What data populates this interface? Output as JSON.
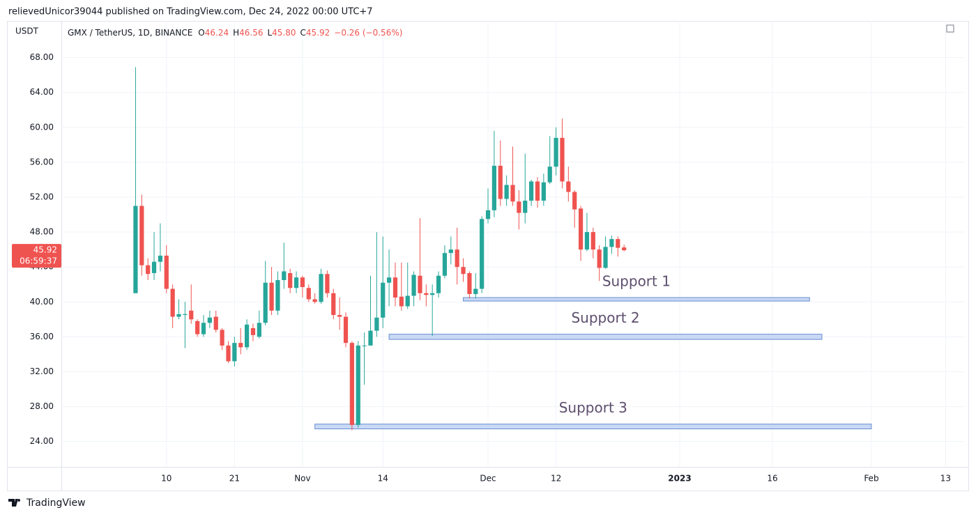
{
  "header": "relievedUnicor39044 published on TradingView.com, Dec 24, 2022 00:00 UTC+7",
  "footer": "TradingView",
  "chart_data": {
    "type": "candlestick",
    "unit": "USDT",
    "legend": {
      "symbol": "GMX / TetherUS, 1D, BINANCE",
      "items": [
        {
          "key": "O",
          "value": "46.24"
        },
        {
          "key": "H",
          "value": "46.56"
        },
        {
          "key": "L",
          "value": "45.80"
        },
        {
          "key": "C",
          "value": "45.92"
        }
      ],
      "change": "−0.26 (−0.56%)"
    },
    "last_price_label": "45.92",
    "countdown": "06:59:37",
    "up_color": "#26a69a",
    "down_color": "#ef5350",
    "x": [
      "2022-10-05",
      "2022-10-06",
      "2022-10-07",
      "2022-10-08",
      "2022-10-09",
      "2022-10-10",
      "2022-10-11",
      "2022-10-12",
      "2022-10-13",
      "2022-10-14",
      "2022-10-15",
      "2022-10-16",
      "2022-10-17",
      "2022-10-18",
      "2022-10-19",
      "2022-10-20",
      "2022-10-21",
      "2022-10-22",
      "2022-10-23",
      "2022-10-24",
      "2022-10-25",
      "2022-10-26",
      "2022-10-27",
      "2022-10-28",
      "2022-10-29",
      "2022-10-30",
      "2022-10-31",
      "2022-11-01",
      "2022-11-02",
      "2022-11-03",
      "2022-11-04",
      "2022-11-05",
      "2022-11-06",
      "2022-11-07",
      "2022-11-08",
      "2022-11-09",
      "2022-11-10",
      "2022-11-11",
      "2022-11-12",
      "2022-11-13",
      "2022-11-14",
      "2022-11-15",
      "2022-11-16",
      "2022-11-17",
      "2022-11-18",
      "2022-11-19",
      "2022-11-20",
      "2022-11-21",
      "2022-11-22",
      "2022-11-23",
      "2022-11-24",
      "2022-11-25",
      "2022-11-26",
      "2022-11-27",
      "2022-11-28",
      "2022-11-29",
      "2022-11-30",
      "2022-12-01",
      "2022-12-02",
      "2022-12-03",
      "2022-12-04",
      "2022-12-05",
      "2022-12-06",
      "2022-12-07",
      "2022-12-08",
      "2022-12-09",
      "2022-12-10",
      "2022-12-11",
      "2022-12-12",
      "2022-12-13",
      "2022-12-14",
      "2022-12-15",
      "2022-12-16",
      "2022-12-17",
      "2022-12-18",
      "2022-12-19",
      "2022-12-20",
      "2022-12-21",
      "2022-12-22",
      "2022-12-23"
    ],
    "open": [
      41,
      51,
      44.2,
      43.3,
      44.6,
      45.3,
      41.5,
      38.3,
      38.5,
      39,
      37.8,
      36.3,
      37.6,
      38.3,
      36.8,
      35,
      33.2,
      35.3,
      34.8,
      37,
      36,
      37.6,
      42.2,
      39,
      42.5,
      43.3,
      41.6,
      42.8,
      41.6,
      40.3,
      40,
      43.2,
      41,
      38.5,
      38.3,
      35.3,
      25.9,
      35,
      35,
      36.7,
      38.2,
      42.2,
      42.8,
      40.6,
      39.5,
      40.7,
      43,
      41,
      40.8,
      41,
      43,
      45.6,
      46,
      44,
      43.3,
      40.9,
      41.5,
      49.5,
      50.5,
      55.6,
      51.8,
      53.4,
      51.5,
      50.2,
      51.6,
      53.8,
      51.6,
      53.7,
      55.5,
      58.8,
      53.8,
      52.6,
      50.7,
      46,
      48,
      46,
      43.9,
      46.3,
      47.2,
      46.24
    ],
    "high": [
      66.9,
      52.3,
      45,
      48,
      49,
      46.5,
      42,
      40.3,
      40,
      42,
      38,
      38.5,
      39,
      39,
      37,
      35.5,
      36,
      37,
      38,
      37.5,
      39,
      44.7,
      44,
      43.5,
      46.8,
      43.8,
      43.5,
      43,
      42,
      41,
      43.8,
      43.6,
      41.5,
      40.5,
      38.8,
      35.5,
      35.5,
      36.5,
      43,
      48,
      47.5,
      46,
      44.5,
      44.5,
      44.5,
      43.5,
      49.6,
      42,
      42,
      43.5,
      46.5,
      47.5,
      48.5,
      45,
      43.5,
      43.3,
      49.8,
      53,
      59.6,
      58.5,
      54.5,
      57.8,
      52.8,
      57,
      54,
      54.3,
      54.7,
      59,
      60,
      61,
      55.5,
      52.8,
      51,
      50.2,
      48.5,
      46.5,
      47.5,
      47.6,
      47.5,
      46.56
    ],
    "low": [
      41,
      43,
      42.5,
      42.5,
      43.5,
      41,
      37,
      38,
      34.7,
      37.5,
      36,
      36,
      37,
      36.5,
      34.5,
      33,
      32.6,
      34,
      34.5,
      35.5,
      35.8,
      37.3,
      38.5,
      38.5,
      41.5,
      41,
      41,
      40.5,
      40,
      39.8,
      39.8,
      40.5,
      38,
      36.8,
      34.8,
      25.3,
      25.6,
      30.5,
      35,
      36,
      37,
      39.5,
      39.5,
      39,
      39.2,
      39.5,
      40.2,
      39.5,
      36.1,
      40.5,
      42.7,
      44.3,
      42,
      42.3,
      40.4,
      40.4,
      41,
      49,
      49.7,
      51,
      51,
      51,
      48.3,
      49,
      51,
      50.8,
      51,
      53.5,
      54.5,
      53,
      51.5,
      48.5,
      44.7,
      45.8,
      45,
      42.4,
      43.8,
      45.5,
      45.2,
      45.8
    ],
    "close": [
      51,
      44.2,
      43.2,
      44.6,
      45.3,
      41.5,
      38.3,
      38.6,
      38.6,
      38,
      36.3,
      37.6,
      38.2,
      36.8,
      35,
      33.2,
      35.3,
      34.8,
      37.4,
      36.2,
      37.6,
      42.2,
      39,
      42.5,
      43.5,
      41.6,
      42.8,
      41.7,
      40.3,
      40,
      43.2,
      41,
      38.5,
      38.3,
      35.3,
      25.9,
      35,
      35,
      36.7,
      38.2,
      42.2,
      42.8,
      40.5,
      39.5,
      40.7,
      43.1,
      41,
      40.8,
      41,
      43,
      45.6,
      46,
      44,
      43.2,
      40.9,
      41.5,
      49.5,
      50.5,
      55.6,
      51.8,
      53.4,
      51.5,
      50.2,
      51.6,
      53.8,
      51.6,
      53.7,
      55.5,
      58.8,
      53.8,
      52.6,
      50.6,
      46,
      48,
      46,
      43.9,
      46.3,
      47.2,
      46.2,
      45.92
    ],
    "xlim": [
      "2022-09-23",
      "2023-02-16"
    ],
    "xticks": [
      {
        "value": "2022-10-10",
        "label": "10"
      },
      {
        "value": "2022-10-21",
        "label": "21"
      },
      {
        "value": "2022-11-01",
        "label": "Nov"
      },
      {
        "value": "2022-11-14",
        "label": "14"
      },
      {
        "value": "2022-12-01",
        "label": "Dec"
      },
      {
        "value": "2022-12-12",
        "label": "12"
      },
      {
        "value": "2023-01-01",
        "label": "2023"
      },
      {
        "value": "2023-01-16",
        "label": "16"
      },
      {
        "value": "2023-02-01",
        "label": "Feb"
      },
      {
        "value": "2023-02-13",
        "label": "13"
      }
    ],
    "ylim": [
      21.1,
      72.2
    ],
    "yticks": [
      {
        "value": 24,
        "label": "24.00"
      },
      {
        "value": 28,
        "label": "28.00"
      },
      {
        "value": 32,
        "label": "32.00"
      },
      {
        "value": 36,
        "label": "36.00"
      },
      {
        "value": 40,
        "label": "40.00"
      },
      {
        "value": 44,
        "label": "44.00"
      },
      {
        "value": 48,
        "label": "48.00"
      },
      {
        "value": 52,
        "label": "52.00"
      },
      {
        "value": 56,
        "label": "56.00"
      },
      {
        "value": 60,
        "label": "60.00"
      },
      {
        "value": 64,
        "label": "64.00"
      },
      {
        "value": 68,
        "label": "68.00"
      }
    ],
    "grid": true,
    "zones": [
      {
        "label": "Support 1",
        "top": 40.5,
        "bottom": 40.1,
        "start": "2022-11-27",
        "end": "2023-01-22"
      },
      {
        "label": "Support 2",
        "top": 36.3,
        "bottom": 35.7,
        "start": "2022-11-15",
        "end": "2023-01-24"
      },
      {
        "label": "Support 3",
        "top": 26,
        "bottom": 25.45,
        "start": "2022-11-03",
        "end": "2023-02-01"
      }
    ]
  }
}
